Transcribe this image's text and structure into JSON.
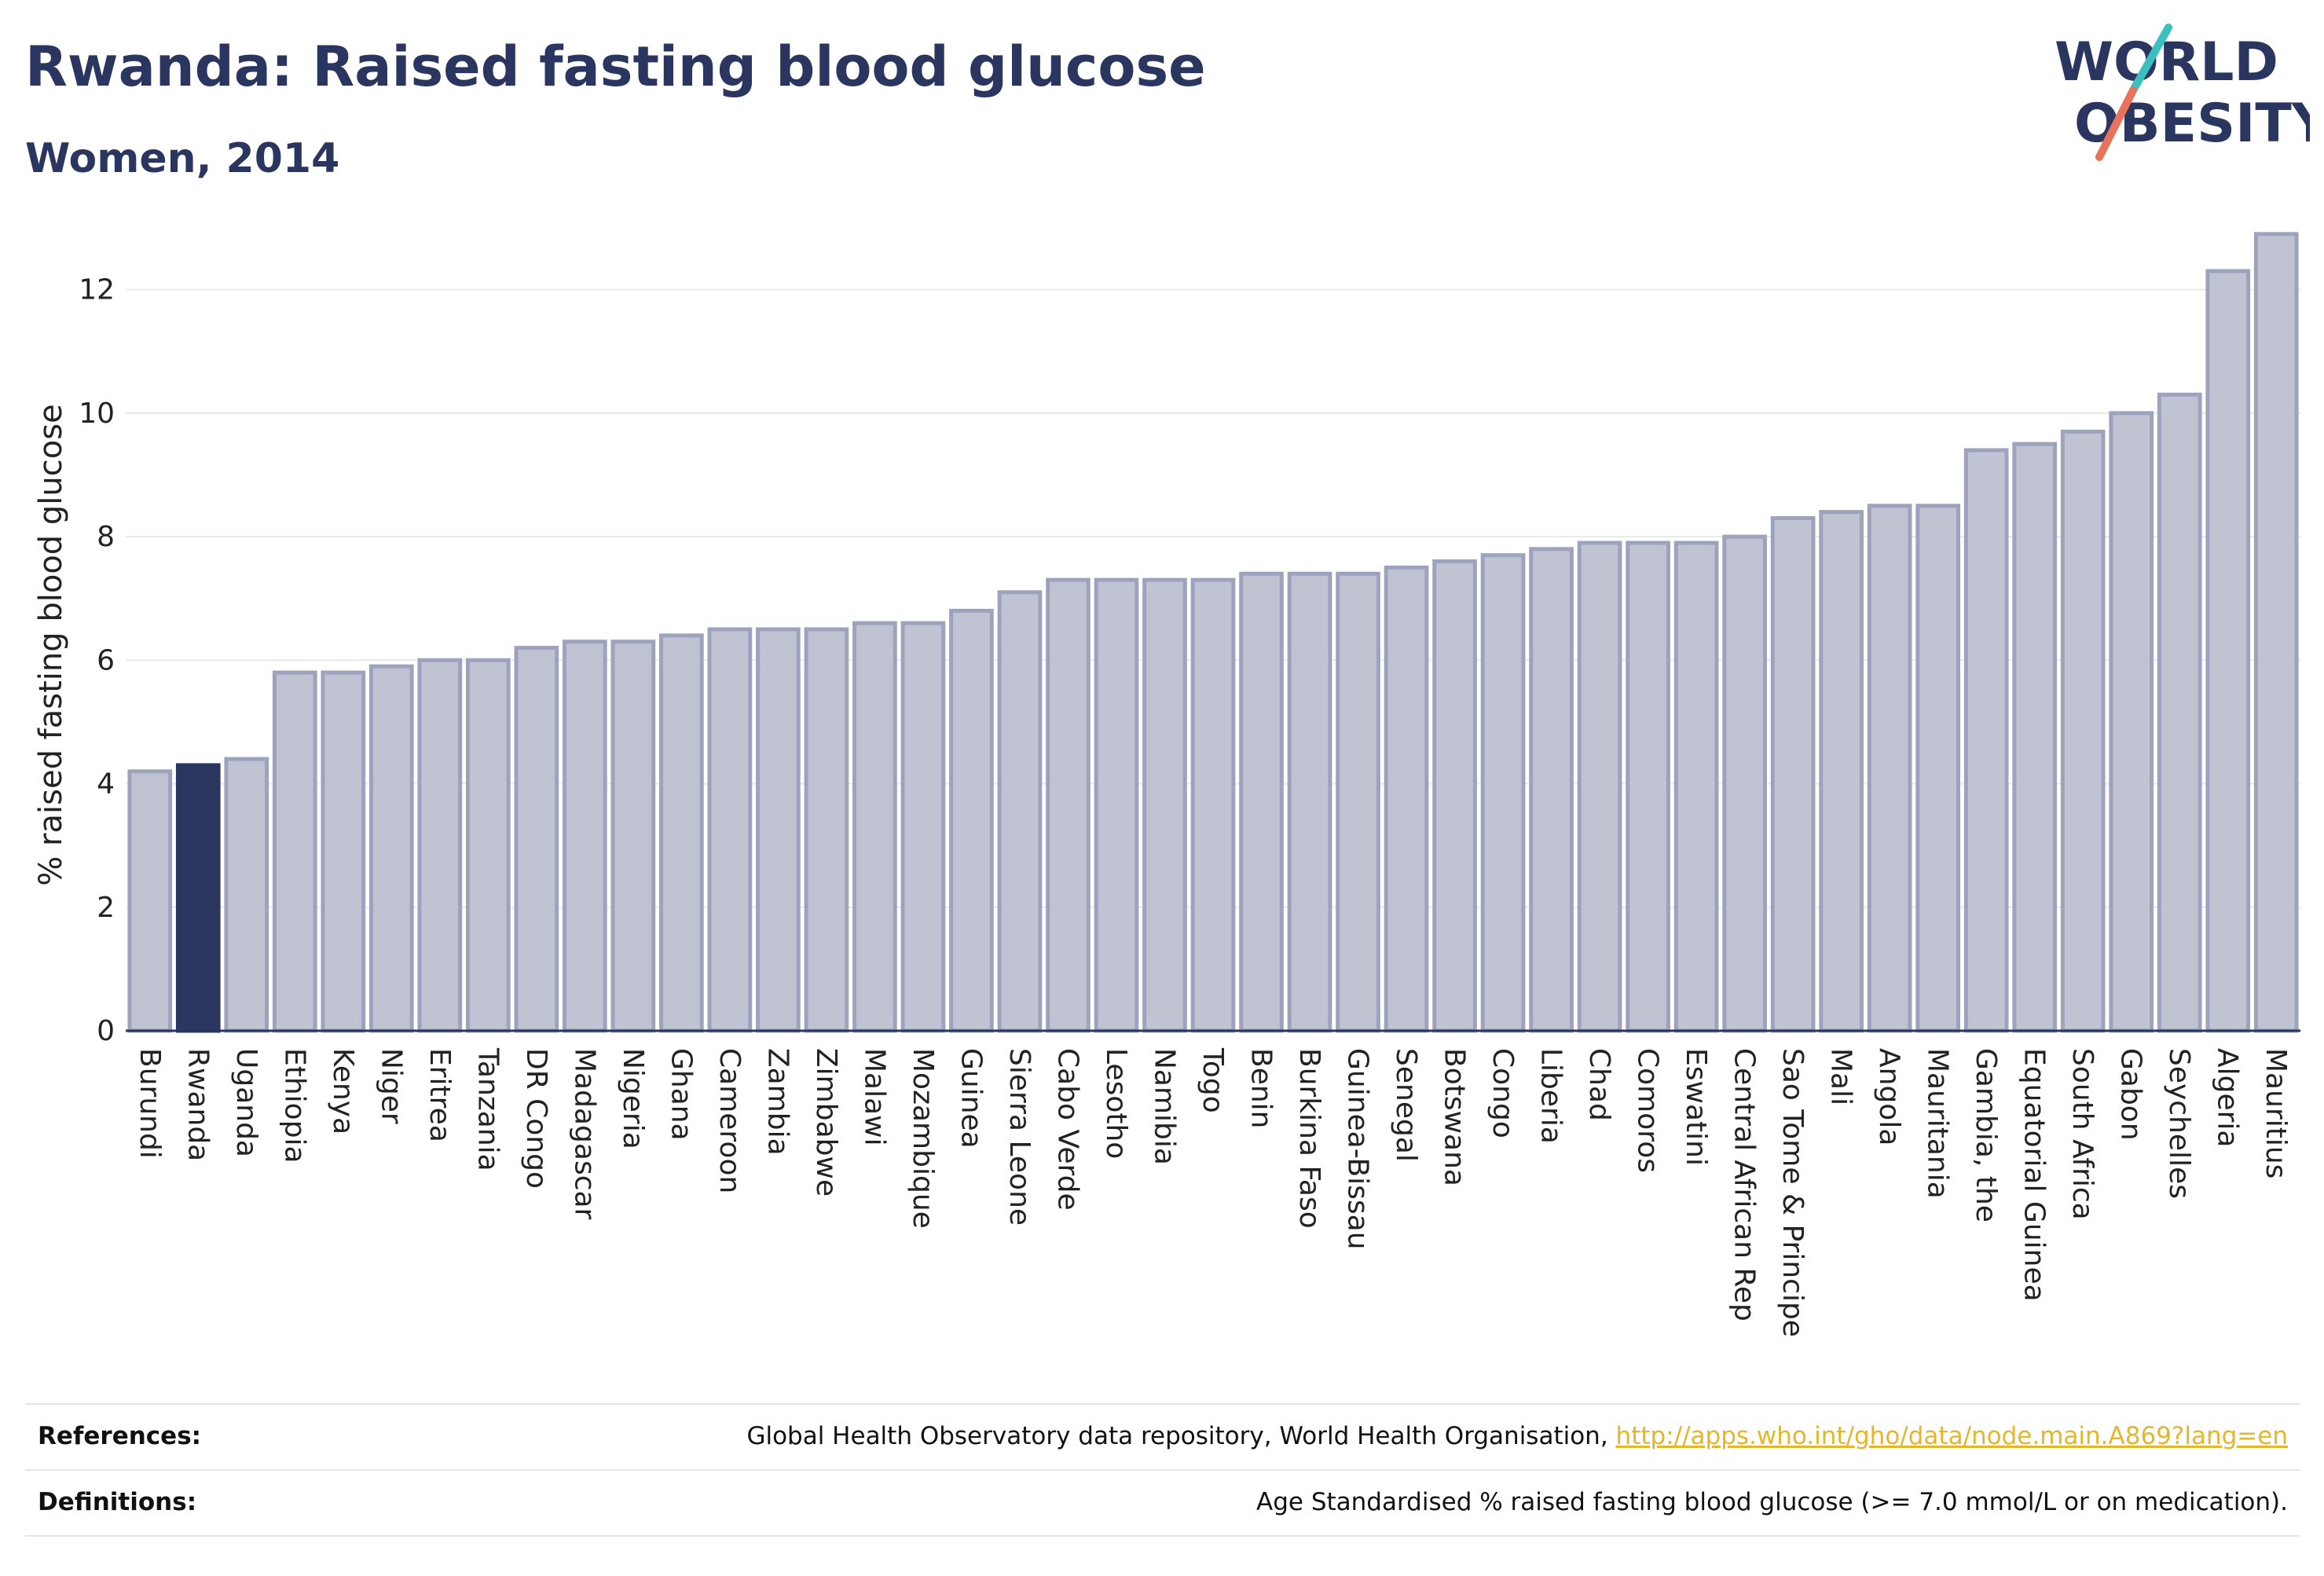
{
  "header": {
    "title": "Rwanda: Raised fasting blood glucose",
    "subtitle": "Women, 2014"
  },
  "logo": {
    "line1": "WORLD",
    "line2": "OBESITY",
    "accent_teal": "#3bbfbf",
    "accent_coral": "#e8735a"
  },
  "chart_data": {
    "type": "bar",
    "ylabel": "% raised fasting blood glucose",
    "xlabel": "",
    "ylim": [
      0,
      13
    ],
    "yticks": [
      0,
      2,
      4,
      6,
      8,
      10,
      12
    ],
    "grid": true,
    "highlight": "Rwanda",
    "colors": {
      "bar": "#bfc3d2",
      "bar_edge": "#9da3bd",
      "highlight": "#2a3560"
    },
    "categories": [
      "Burundi",
      "Rwanda",
      "Uganda",
      "Ethiopia",
      "Kenya",
      "Niger",
      "Eritrea",
      "Tanzania",
      "DR Congo",
      "Madagascar",
      "Nigeria",
      "Ghana",
      "Cameroon",
      "Zambia",
      "Zimbabwe",
      "Malawi",
      "Mozambique",
      "Guinea",
      "Sierra Leone",
      "Cabo Verde",
      "Lesotho",
      "Namibia",
      "Togo",
      "Benin",
      "Burkina Faso",
      "Guinea-Bissau",
      "Senegal",
      "Botswana",
      "Congo",
      "Liberia",
      "Chad",
      "Comoros",
      "Eswatini",
      "Central African Rep",
      "Sao Tome & Principe",
      "Mali",
      "Angola",
      "Mauritania",
      "Gambia, the",
      "Equatorial Guinea",
      "South Africa",
      "Gabon",
      "Seychelles",
      "Algeria",
      "Mauritius"
    ],
    "values": [
      4.2,
      4.3,
      4.4,
      5.8,
      5.8,
      5.9,
      6.0,
      6.0,
      6.2,
      6.3,
      6.3,
      6.4,
      6.5,
      6.5,
      6.5,
      6.6,
      6.6,
      6.8,
      7.1,
      7.3,
      7.3,
      7.3,
      7.3,
      7.4,
      7.4,
      7.4,
      7.5,
      7.6,
      7.7,
      7.8,
      7.9,
      7.9,
      7.9,
      8.0,
      8.3,
      8.4,
      8.5,
      8.5,
      9.4,
      9.5,
      9.7,
      10.0,
      10.3,
      12.3,
      12.9
    ]
  },
  "footer": {
    "references_label": "References:",
    "references_text": "Global Health Observatory data repository, World Health Organisation, ",
    "references_link": "http://apps.who.int/gho/data/node.main.A869?lang=en",
    "definitions_label": "Definitions:",
    "definitions_text": "Age Standardised % raised fasting blood glucose (>= 7.0 mmol/L or on medication)."
  }
}
